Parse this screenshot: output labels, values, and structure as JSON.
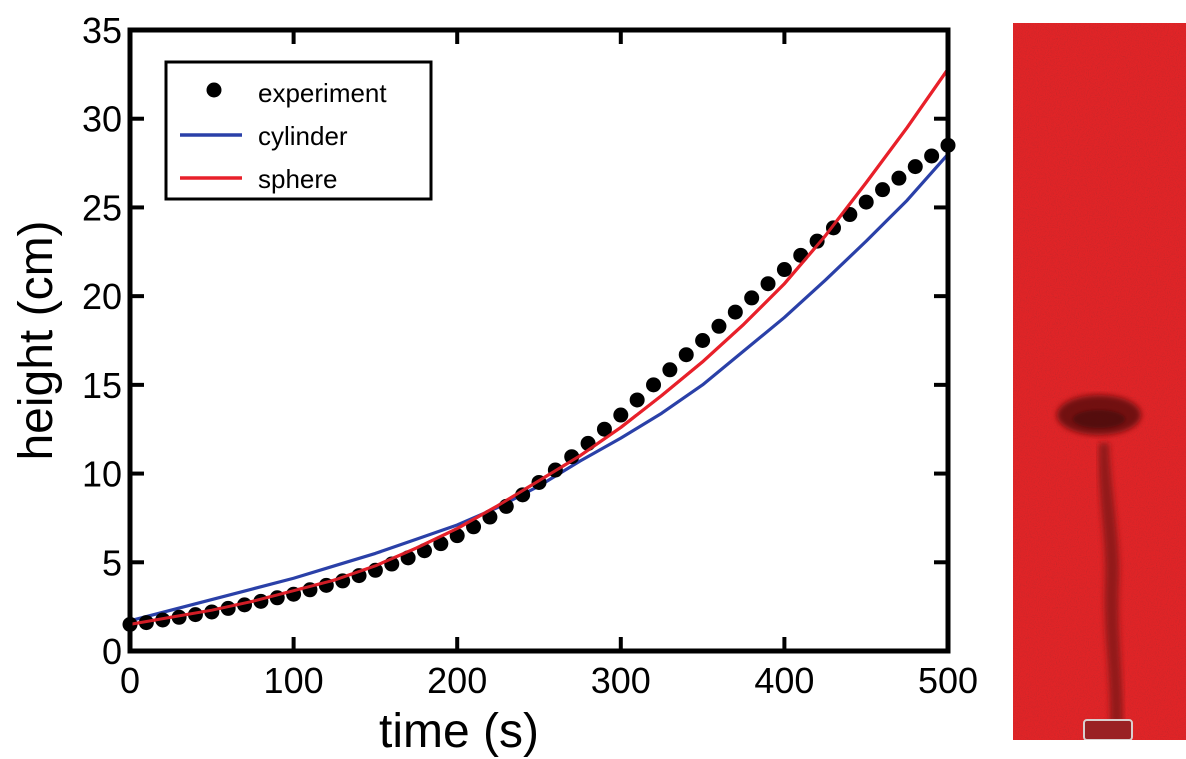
{
  "chart_data": {
    "type": "line",
    "title": "",
    "xlabel": "time (s)",
    "ylabel": "height (cm)",
    "xlim": [
      0,
      500
    ],
    "ylim": [
      0,
      35
    ],
    "xticks": [
      0,
      100,
      200,
      300,
      400,
      500
    ],
    "yticks": [
      0,
      5,
      10,
      15,
      20,
      25,
      30,
      35
    ],
    "grid": false,
    "legend_position": "top-left",
    "series": [
      {
        "name": "experiment",
        "style": "markers",
        "color": "#000000",
        "x": [
          0,
          10,
          20,
          30,
          40,
          50,
          60,
          70,
          80,
          90,
          100,
          110,
          120,
          130,
          140,
          150,
          160,
          170,
          180,
          190,
          200,
          210,
          220,
          230,
          240,
          250,
          260,
          270,
          280,
          290,
          300,
          310,
          320,
          330,
          340,
          350,
          360,
          370,
          380,
          390,
          400,
          410,
          420,
          430,
          440,
          450,
          460,
          470,
          480,
          490,
          500
        ],
        "y": [
          1.5,
          1.6,
          1.75,
          1.9,
          2.05,
          2.2,
          2.4,
          2.6,
          2.8,
          3.0,
          3.2,
          3.45,
          3.7,
          3.95,
          4.25,
          4.55,
          4.9,
          5.25,
          5.65,
          6.05,
          6.5,
          7.0,
          7.55,
          8.15,
          8.8,
          9.5,
          10.2,
          10.95,
          11.7,
          12.5,
          13.3,
          14.15,
          15.0,
          15.85,
          16.7,
          17.5,
          18.3,
          19.1,
          19.9,
          20.7,
          21.5,
          22.3,
          23.1,
          23.85,
          24.6,
          25.3,
          26.0,
          26.65,
          27.3,
          27.9,
          28.5
        ]
      },
      {
        "name": "cylinder",
        "style": "line",
        "color": "#2a40a8",
        "x": [
          0,
          25,
          50,
          75,
          100,
          125,
          150,
          175,
          200,
          225,
          250,
          275,
          300,
          325,
          350,
          375,
          400,
          425,
          450,
          475,
          500
        ],
        "y": [
          1.7,
          2.3,
          2.9,
          3.5,
          4.1,
          4.8,
          5.5,
          6.3,
          7.1,
          8.1,
          9.3,
          10.7,
          12.0,
          13.4,
          15.0,
          16.9,
          18.8,
          20.9,
          23.1,
          25.4,
          28.0
        ]
      },
      {
        "name": "sphere",
        "style": "line",
        "color": "#e8202a",
        "x": [
          0,
          25,
          50,
          75,
          100,
          125,
          150,
          175,
          200,
          225,
          250,
          275,
          300,
          325,
          350,
          375,
          400,
          425,
          450,
          475,
          500
        ],
        "y": [
          1.5,
          1.9,
          2.3,
          2.8,
          3.4,
          4.0,
          4.8,
          5.8,
          6.9,
          8.2,
          9.6,
          11.0,
          12.6,
          14.4,
          16.3,
          18.4,
          20.7,
          23.4,
          26.4,
          29.5,
          32.8
        ]
      }
    ]
  },
  "colors": {
    "photo_background": "#e02427",
    "photo_shadow": "#7a1416"
  }
}
